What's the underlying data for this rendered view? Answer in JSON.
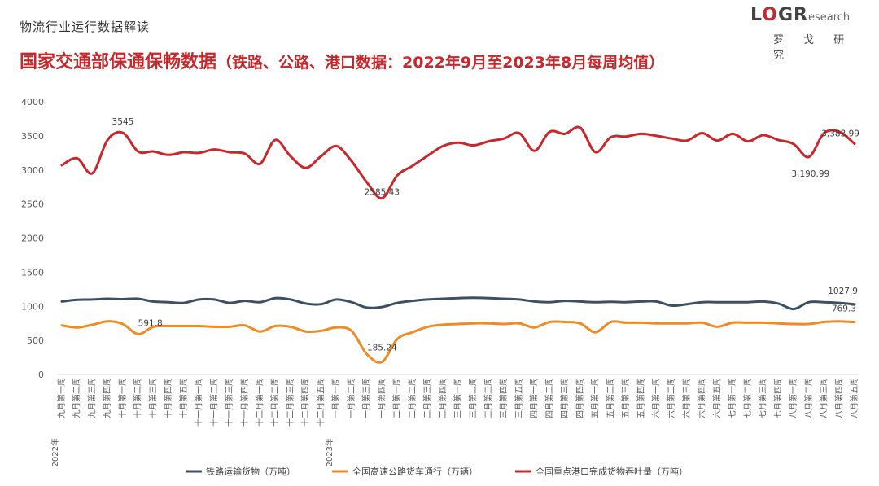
{
  "header": {
    "kicker": "物流行业运行数据解读",
    "title_main": "国家交通部保通保畅数据",
    "title_sub": "（铁路、公路、港口数据：2022年9月至2023年8月每周均值）"
  },
  "logo": {
    "mark_1": "L",
    "mark_o": "O",
    "mark_2": "G",
    "mark_r": "R",
    "mark_suffix": "esearch",
    "name_cn": "罗 戈 研 究"
  },
  "chart_data": {
    "type": "line",
    "grid": false,
    "ylim": [
      0,
      4000
    ],
    "yticks": [
      0,
      500,
      1000,
      1500,
      2000,
      2500,
      3000,
      3500,
      4000
    ],
    "legend_position": "bottom",
    "categories": [
      "九月第一周",
      "九月第二周",
      "九月第三周",
      "九月第四周",
      "十月第一周",
      "十月第二周",
      "十月第三周",
      "十月第四周",
      "十月第五周",
      "十一月第一周",
      "十一月第二周",
      "十一月第三周",
      "十一月第四周",
      "十二月第一周",
      "十二月第二周",
      "十二月第三周",
      "十二月第四周",
      "十二月第五周",
      "一月第一周",
      "一月第二周",
      "一月第三周",
      "一月第四周",
      "二月第一周",
      "二月第二周",
      "二月第三周",
      "二月第四周",
      "三月第一周",
      "三月第二周",
      "三月第三周",
      "三月第四周",
      "三月第五周",
      "四月第一周",
      "四月第二周",
      "四月第三周",
      "四月第四周",
      "五月第一周",
      "五月第二周",
      "五月第三周",
      "五月第四周",
      "六月第一周",
      "六月第二周",
      "六月第三周",
      "六月第四周",
      "六月第五周",
      "七月第一周",
      "七月第二周",
      "七月第三周",
      "七月第四周",
      "八月第一周",
      "八月第二周",
      "八月第三周",
      "八月第四周",
      "八月第五周"
    ],
    "year_labels": [
      {
        "index": 0,
        "text": "2022年"
      },
      {
        "index": 18,
        "text": "2023年"
      }
    ],
    "series": [
      {
        "name": "铁路运输货物（万吨）",
        "color": "#3d5063",
        "values": [
          1070,
          1095,
          1100,
          1110,
          1105,
          1110,
          1070,
          1060,
          1050,
          1100,
          1100,
          1050,
          1080,
          1060,
          1120,
          1100,
          1040,
          1030,
          1100,
          1060,
          980,
          990,
          1050,
          1080,
          1100,
          1110,
          1120,
          1125,
          1120,
          1110,
          1100,
          1070,
          1060,
          1080,
          1070,
          1060,
          1065,
          1060,
          1070,
          1070,
          1010,
          1030,
          1060,
          1060,
          1060,
          1060,
          1070,
          1040,
          960,
          1060,
          1060,
          1050,
          1027.9
        ]
      },
      {
        "name": "全国高速公路货车通行（万辆）",
        "color": "#f08a24",
        "values": [
          720,
          690,
          730,
          780,
          740,
          591.8,
          700,
          710,
          710,
          710,
          700,
          700,
          720,
          630,
          710,
          700,
          630,
          640,
          690,
          640,
          300,
          185.24,
          520,
          620,
          700,
          730,
          740,
          750,
          750,
          740,
          750,
          690,
          770,
          770,
          750,
          620,
          770,
          760,
          760,
          750,
          750,
          750,
          760,
          700,
          760,
          760,
          760,
          750,
          740,
          740,
          770,
          780,
          769.3
        ]
      },
      {
        "name": "全国重点港口完成货物吞吐量（万吨）",
        "color": "#c8282b",
        "values": [
          3070,
          3170,
          2950,
          3440,
          3545,
          3270,
          3270,
          3220,
          3260,
          3250,
          3300,
          3260,
          3240,
          3090,
          3440,
          3200,
          3030,
          3200,
          3350,
          3130,
          2820,
          2585.43,
          2920,
          3060,
          3210,
          3350,
          3400,
          3360,
          3420,
          3460,
          3540,
          3280,
          3560,
          3530,
          3620,
          3260,
          3480,
          3490,
          3530,
          3500,
          3460,
          3430,
          3540,
          3430,
          3530,
          3420,
          3510,
          3440,
          3380,
          3190.99,
          3540,
          3560,
          3383.99
        ]
      }
    ],
    "data_labels": [
      {
        "series": 2,
        "index": 4,
        "text": "3545"
      },
      {
        "series": 2,
        "index": 21,
        "text": "2585.43"
      },
      {
        "series": 2,
        "index": 49,
        "text": "3,190.99"
      },
      {
        "series": 2,
        "index": 52,
        "text": "3,383.99"
      },
      {
        "series": 0,
        "index": 52,
        "text": "1027.9"
      },
      {
        "series": 1,
        "index": 5,
        "text": "591.8"
      },
      {
        "series": 1,
        "index": 21,
        "text": "185.24"
      },
      {
        "series": 1,
        "index": 52,
        "text": "769.3"
      }
    ]
  }
}
